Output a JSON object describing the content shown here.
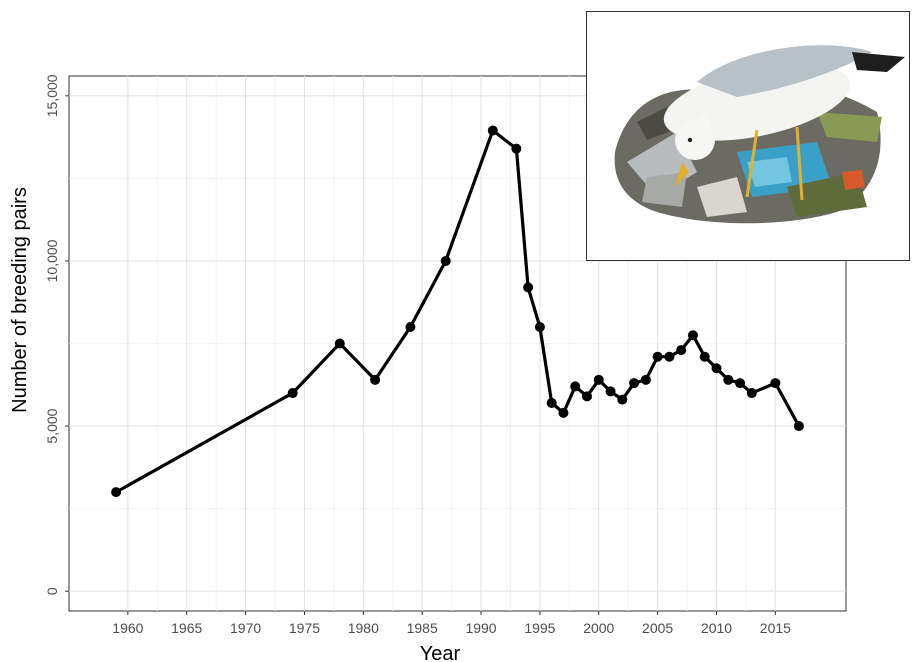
{
  "chart_data": {
    "type": "line",
    "title": "",
    "xlabel": "Year",
    "ylabel": "Number of breeding pairs",
    "xlim": [
      1955,
      2021
    ],
    "ylim": [
      -600,
      15600
    ],
    "xticks": [
      1960,
      1965,
      1970,
      1975,
      1980,
      1985,
      1990,
      1995,
      2000,
      2005,
      2010,
      2015
    ],
    "xtick_labels": [
      "1960",
      "1965",
      "1970",
      "1975",
      "1980",
      "1985",
      "1990",
      "1995",
      "2000",
      "2005",
      "2010",
      "2015"
    ],
    "yticks": [
      0,
      5000,
      10000,
      15000
    ],
    "ytick_labels": [
      "0",
      "5,000",
      "10,000",
      "15,000"
    ],
    "grid": true,
    "series": [
      {
        "x": [
          1959,
          1974,
          1978,
          1981,
          1984,
          1987,
          1991,
          1993,
          1994,
          1995,
          1996,
          1997,
          1998,
          1999,
          2000,
          2001,
          2002,
          2003,
          2004,
          2005,
          2006,
          2007,
          2008,
          2009,
          2010,
          2011,
          2012,
          2013,
          2015,
          2017
        ],
        "y": [
          3000,
          6000,
          7500,
          6400,
          8000,
          10000,
          13950,
          13400,
          9200,
          8000,
          5700,
          5400,
          6200,
          5900,
          6400,
          6050,
          5800,
          6300,
          6400,
          7100,
          7100,
          7300,
          7750,
          7100,
          6750,
          6400,
          6300,
          6000,
          6300,
          5000
        ]
      }
    ],
    "line_color": "#000000",
    "inset_image": "gull-feeding-on-litter-illustration"
  }
}
